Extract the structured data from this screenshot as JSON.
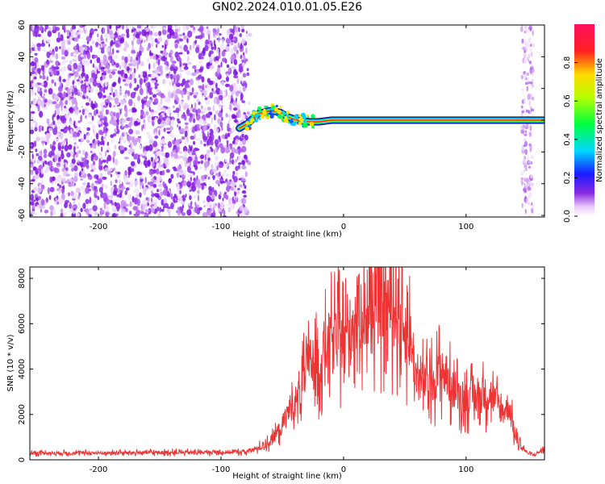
{
  "title": "GN02.2024.010.01.05.E26",
  "chart_data": [
    {
      "type": "heatmap",
      "xlabel": "Height of straight line (km)",
      "ylabel": "Frequency (Hz)",
      "xlim": [
        -256,
        164
      ],
      "ylim": [
        -61,
        60
      ],
      "x_ticks": [
        -200,
        -100,
        0,
        100
      ],
      "y_ticks": [
        -60,
        -40,
        -20,
        0,
        20,
        40,
        60
      ],
      "colorbar": {
        "label": "Normalized spectral amplitude",
        "range": [
          0.0,
          1.0
        ],
        "ticks": [
          0.0,
          0.2,
          0.4,
          0.6,
          0.8
        ]
      },
      "noise_region_x": [
        -256,
        -80
      ],
      "signal_track": [
        {
          "x": -85,
          "y": -5
        },
        {
          "x": -78,
          "y": -2
        },
        {
          "x": -70,
          "y": 4
        },
        {
          "x": -60,
          "y": 6
        },
        {
          "x": -52,
          "y": 5
        },
        {
          "x": -45,
          "y": 2
        },
        {
          "x": -38,
          "y": 0
        },
        {
          "x": -28,
          "y": -1
        },
        {
          "x": -20,
          "y": -1
        },
        {
          "x": -10,
          "y": 0
        },
        {
          "x": 0,
          "y": 0
        },
        {
          "x": 50,
          "y": 0
        },
        {
          "x": 100,
          "y": 0
        },
        {
          "x": 164,
          "y": 0
        }
      ],
      "vertical_stripe_x": 150
    },
    {
      "type": "line",
      "xlabel": "Height of straight line (km)",
      "ylabel": "SNR (10 * v/v)",
      "xlim": [
        -256,
        164
      ],
      "ylim": [
        0,
        8500
      ],
      "x_ticks": [
        -200,
        -100,
        0,
        100
      ],
      "y_ticks": [
        0,
        2000,
        4000,
        6000,
        8000
      ],
      "color": "#ee3333",
      "series": [
        {
          "x": [
            -256,
            -200,
            -150,
            -100,
            -80,
            -70,
            -60,
            -50,
            -45,
            -40,
            -35,
            -30,
            -25,
            -20,
            -15,
            -10,
            -5,
            0,
            5,
            10,
            15,
            20,
            25,
            30,
            35,
            40,
            45,
            50,
            55,
            60,
            70,
            80,
            90,
            100,
            110,
            120,
            130,
            135,
            140,
            145,
            150,
            155,
            164
          ],
          "y": [
            300,
            300,
            320,
            330,
            350,
            500,
            800,
            1500,
            2200,
            2500,
            3000,
            4000,
            4500,
            4000,
            5000,
            5200,
            5500,
            5300,
            5600,
            6300,
            6600,
            6300,
            6700,
            7000,
            6800,
            7000,
            6400,
            5700,
            5300,
            3500,
            3400,
            4000,
            3000,
            2700,
            2800,
            2900,
            2100,
            2400,
            1000,
            600,
            300,
            200,
            500
          ]
        }
      ]
    }
  ]
}
